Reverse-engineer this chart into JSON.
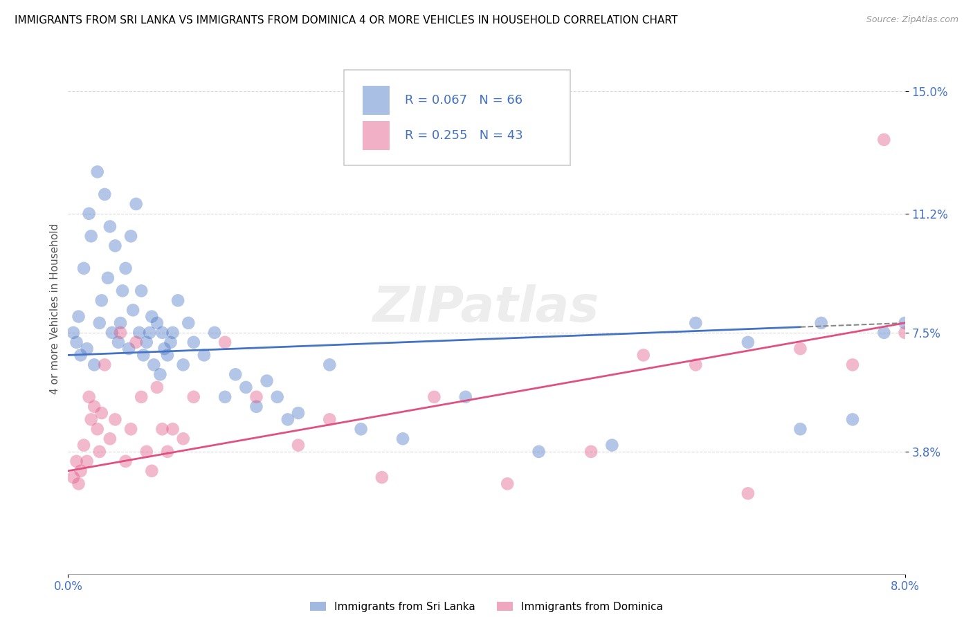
{
  "title": "IMMIGRANTS FROM SRI LANKA VS IMMIGRANTS FROM DOMINICA 4 OR MORE VEHICLES IN HOUSEHOLD CORRELATION CHART",
  "source": "Source: ZipAtlas.com",
  "x_min": 0.0,
  "x_max": 8.0,
  "y_min": 0.0,
  "y_max": 16.5,
  "y_ticks": [
    3.8,
    7.5,
    11.2,
    15.0
  ],
  "series_sri_lanka": {
    "label": "Immigrants from Sri Lanka",
    "color": "#6699cc",
    "R": 0.067,
    "N": 66,
    "x": [
      0.05,
      0.08,
      0.1,
      0.12,
      0.15,
      0.18,
      0.2,
      0.22,
      0.25,
      0.28,
      0.3,
      0.32,
      0.35,
      0.38,
      0.4,
      0.42,
      0.45,
      0.48,
      0.5,
      0.52,
      0.55,
      0.58,
      0.6,
      0.62,
      0.65,
      0.68,
      0.7,
      0.72,
      0.75,
      0.78,
      0.8,
      0.82,
      0.85,
      0.88,
      0.9,
      0.92,
      0.95,
      0.98,
      1.0,
      1.05,
      1.1,
      1.15,
      1.2,
      1.3,
      1.4,
      1.5,
      1.6,
      1.7,
      1.8,
      1.9,
      2.0,
      2.1,
      2.2,
      2.5,
      2.8,
      3.2,
      3.8,
      4.5,
      5.2,
      6.0,
      6.5,
      7.0,
      7.2,
      7.5,
      7.8,
      8.0
    ],
    "y": [
      7.5,
      7.2,
      8.0,
      6.8,
      9.5,
      7.0,
      11.2,
      10.5,
      6.5,
      12.5,
      7.8,
      8.5,
      11.8,
      9.2,
      10.8,
      7.5,
      10.2,
      7.2,
      7.8,
      8.8,
      9.5,
      7.0,
      10.5,
      8.2,
      11.5,
      7.5,
      8.8,
      6.8,
      7.2,
      7.5,
      8.0,
      6.5,
      7.8,
      6.2,
      7.5,
      7.0,
      6.8,
      7.2,
      7.5,
      8.5,
      6.5,
      7.8,
      7.2,
      6.8,
      7.5,
      5.5,
      6.2,
      5.8,
      5.2,
      6.0,
      5.5,
      4.8,
      5.0,
      6.5,
      4.5,
      4.2,
      5.5,
      3.8,
      4.0,
      7.8,
      7.2,
      4.5,
      7.8,
      4.8,
      7.5,
      7.8
    ]
  },
  "series_dominica": {
    "label": "Immigrants from Dominica",
    "color": "#ee7799",
    "R": 0.255,
    "N": 43,
    "x": [
      0.05,
      0.08,
      0.1,
      0.12,
      0.15,
      0.18,
      0.2,
      0.22,
      0.25,
      0.28,
      0.3,
      0.32,
      0.35,
      0.4,
      0.45,
      0.5,
      0.55,
      0.6,
      0.65,
      0.7,
      0.75,
      0.8,
      0.85,
      0.9,
      0.95,
      1.0,
      1.1,
      1.2,
      1.5,
      1.8,
      2.2,
      2.5,
      3.0,
      3.5,
      4.2,
      5.0,
      5.5,
      6.0,
      6.5,
      7.0,
      7.5,
      7.8,
      8.0
    ],
    "y": [
      3.0,
      3.5,
      2.8,
      3.2,
      4.0,
      3.5,
      5.5,
      4.8,
      5.2,
      4.5,
      3.8,
      5.0,
      6.5,
      4.2,
      4.8,
      7.5,
      3.5,
      4.5,
      7.2,
      5.5,
      3.8,
      3.2,
      5.8,
      4.5,
      3.8,
      4.5,
      4.2,
      5.5,
      7.2,
      5.5,
      4.0,
      4.8,
      3.0,
      5.5,
      2.8,
      3.8,
      6.8,
      6.5,
      2.5,
      7.0,
      6.5,
      13.5,
      7.5
    ]
  },
  "blue_color": "#4472c4",
  "pink_color": "#e05080",
  "legend_R_N_color": "#4472c4",
  "grid_color": "#d8d8d8",
  "watermark": "ZIPatlas",
  "title_fontsize": 11,
  "source_fontsize": 9,
  "sl_trend_start_y": 6.8,
  "sl_trend_end_y": 7.8,
  "dom_trend_start_y": 3.2,
  "dom_trend_end_y": 7.8
}
